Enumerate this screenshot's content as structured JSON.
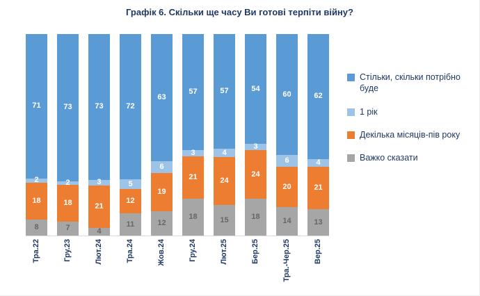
{
  "title": "Графік 6. Скільки ще часу Ви готові терпіти війну?",
  "chart_data": {
    "type": "bar",
    "stacked": true,
    "title": "Графік 6. Скільки ще часу Ви готові терпіти війну?",
    "xlabel": "",
    "ylabel": "",
    "ylim": [
      0,
      100
    ],
    "grid": false,
    "legend_position": "right",
    "categories": [
      "Тра.22",
      "Гру.23",
      "Лют.24",
      "Тра.24",
      "Жов.24",
      "Гру.24",
      "Лют.25",
      "Бер.25",
      "Тра.-Чер.25",
      "Вер.25"
    ],
    "series": [
      {
        "name": "Стільки, скільки потрібно буде",
        "color": "#5b9bd5",
        "label_color": "#ffffff",
        "values": [
          71,
          73,
          73,
          72,
          63,
          57,
          57,
          54,
          60,
          62
        ]
      },
      {
        "name": "1 рік",
        "color": "#9dc3e6",
        "label_color": "#ffffff",
        "values": [
          2,
          2,
          3,
          5,
          6,
          3,
          4,
          3,
          6,
          4
        ]
      },
      {
        "name": "Декілька місяців-пів року",
        "color": "#ed7d31",
        "label_color": "#ffffff",
        "values": [
          18,
          18,
          21,
          12,
          19,
          21,
          24,
          24,
          20,
          21
        ]
      },
      {
        "name": "Важко сказати",
        "color": "#a6a6a6",
        "label_color": "#666666",
        "values": [
          8,
          7,
          4,
          11,
          12,
          18,
          15,
          18,
          14,
          13
        ]
      }
    ]
  }
}
